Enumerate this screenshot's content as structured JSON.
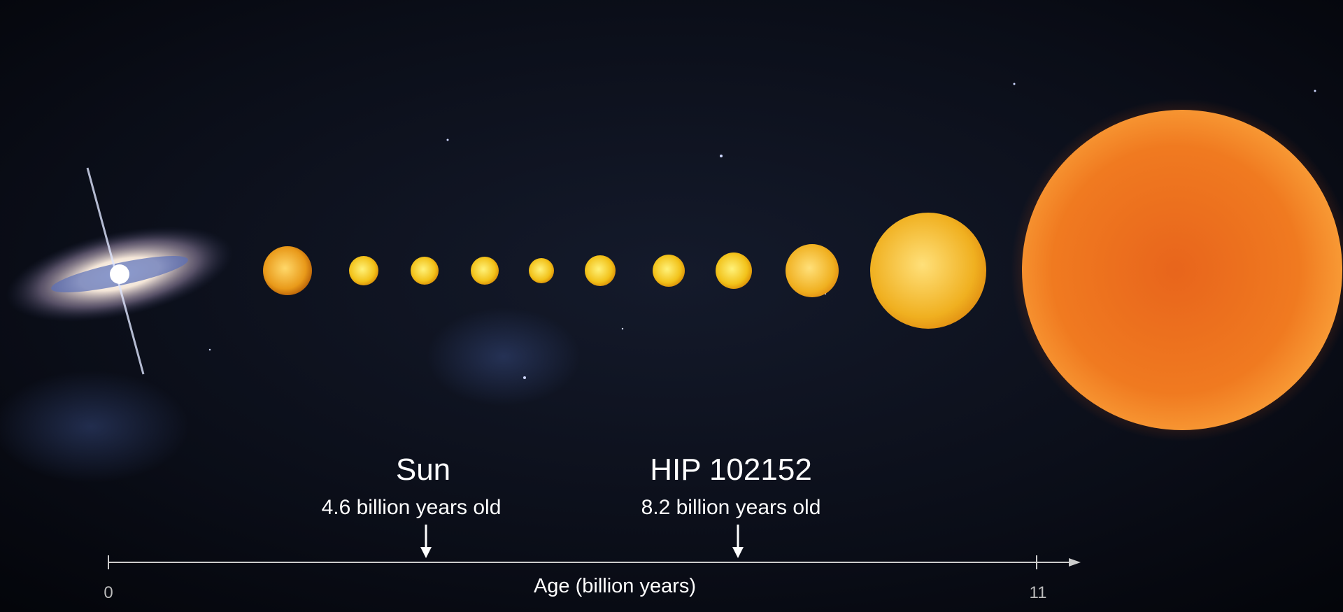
{
  "markers": [
    {
      "name": "Sun",
      "caption": "4.6 billion years old"
    },
    {
      "name": "HIP 102152",
      "caption": "8.2 billion years old"
    }
  ],
  "axis": {
    "label": "Age (billion years)",
    "ticks": [
      0,
      11
    ]
  }
}
